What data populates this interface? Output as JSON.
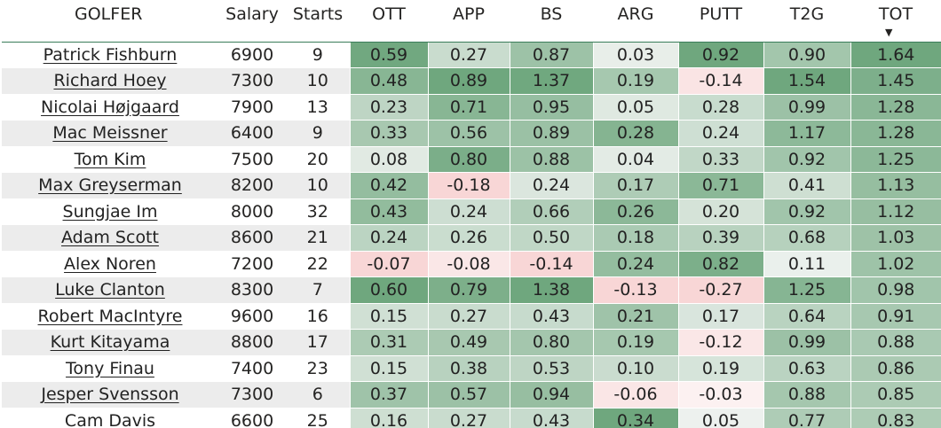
{
  "columns": {
    "golfer": "GOLFER",
    "salary": "Salary",
    "starts": "Starts",
    "ott": "OTT",
    "app": "APP",
    "bs": "BS",
    "arg": "ARG",
    "putt": "PUTT",
    "t2g": "T2G",
    "tot": "TOT"
  },
  "sort": {
    "column": "TOT",
    "direction": "descending",
    "icon": "sort-down-icon"
  },
  "colors": {
    "positive": "#6fa77e",
    "negative": "#f7d6d6",
    "neutral": "#f6f6f6",
    "header_rule": "#3a7d5a"
  },
  "rows": [
    {
      "golfer": "Patrick Fishburn",
      "salary": "6900",
      "starts": "9",
      "ott": "0.59",
      "app": "0.27",
      "bs": "0.87",
      "arg": "0.03",
      "putt": "0.92",
      "t2g": "0.90",
      "tot": "1.64"
    },
    {
      "golfer": "Richard Hoey",
      "salary": "7300",
      "starts": "10",
      "ott": "0.48",
      "app": "0.89",
      "bs": "1.37",
      "arg": "0.19",
      "putt": "-0.14",
      "t2g": "1.54",
      "tot": "1.45"
    },
    {
      "golfer": "Nicolai Højgaard",
      "salary": "7900",
      "starts": "13",
      "ott": "0.23",
      "app": "0.71",
      "bs": "0.95",
      "arg": "0.05",
      "putt": "0.28",
      "t2g": "0.99",
      "tot": "1.28"
    },
    {
      "golfer": "Mac Meissner",
      "salary": "6400",
      "starts": "9",
      "ott": "0.33",
      "app": "0.56",
      "bs": "0.89",
      "arg": "0.28",
      "putt": "0.24",
      "t2g": "1.17",
      "tot": "1.28"
    },
    {
      "golfer": "Tom Kim",
      "salary": "7500",
      "starts": "20",
      "ott": "0.08",
      "app": "0.80",
      "bs": "0.88",
      "arg": "0.04",
      "putt": "0.33",
      "t2g": "0.92",
      "tot": "1.25"
    },
    {
      "golfer": "Max Greyserman",
      "salary": "8200",
      "starts": "10",
      "ott": "0.42",
      "app": "-0.18",
      "bs": "0.24",
      "arg": "0.17",
      "putt": "0.71",
      "t2g": "0.41",
      "tot": "1.13"
    },
    {
      "golfer": "Sungjae Im",
      "salary": "8000",
      "starts": "32",
      "ott": "0.43",
      "app": "0.24",
      "bs": "0.66",
      "arg": "0.26",
      "putt": "0.20",
      "t2g": "0.92",
      "tot": "1.12"
    },
    {
      "golfer": "Adam Scott",
      "salary": "8600",
      "starts": "21",
      "ott": "0.24",
      "app": "0.26",
      "bs": "0.50",
      "arg": "0.18",
      "putt": "0.39",
      "t2g": "0.68",
      "tot": "1.03"
    },
    {
      "golfer": "Alex Noren",
      "salary": "7200",
      "starts": "22",
      "ott": "-0.07",
      "app": "-0.08",
      "bs": "-0.14",
      "arg": "0.24",
      "putt": "0.82",
      "t2g": "0.11",
      "tot": "1.02"
    },
    {
      "golfer": "Luke Clanton",
      "salary": "8300",
      "starts": "7",
      "ott": "0.60",
      "app": "0.79",
      "bs": "1.38",
      "arg": "-0.13",
      "putt": "-0.27",
      "t2g": "1.25",
      "tot": "0.98"
    },
    {
      "golfer": "Robert MacIntyre",
      "salary": "9600",
      "starts": "16",
      "ott": "0.15",
      "app": "0.27",
      "bs": "0.43",
      "arg": "0.21",
      "putt": "0.17",
      "t2g": "0.64",
      "tot": "0.91"
    },
    {
      "golfer": "Kurt Kitayama",
      "salary": "8800",
      "starts": "17",
      "ott": "0.31",
      "app": "0.49",
      "bs": "0.80",
      "arg": "0.19",
      "putt": "-0.12",
      "t2g": "0.99",
      "tot": "0.88"
    },
    {
      "golfer": "Tony Finau",
      "salary": "7400",
      "starts": "23",
      "ott": "0.15",
      "app": "0.38",
      "bs": "0.53",
      "arg": "0.10",
      "putt": "0.19",
      "t2g": "0.63",
      "tot": "0.86"
    },
    {
      "golfer": "Jesper Svensson",
      "salary": "7300",
      "starts": "6",
      "ott": "0.37",
      "app": "0.57",
      "bs": "0.94",
      "arg": "-0.06",
      "putt": "-0.03",
      "t2g": "0.88",
      "tot": "0.85"
    },
    {
      "golfer": "Cam Davis",
      "salary": "6600",
      "starts": "25",
      "ott": "0.16",
      "app": "0.27",
      "bs": "0.43",
      "arg": "0.34",
      "putt": "0.05",
      "t2g": "0.77",
      "tot": "0.83"
    }
  ]
}
